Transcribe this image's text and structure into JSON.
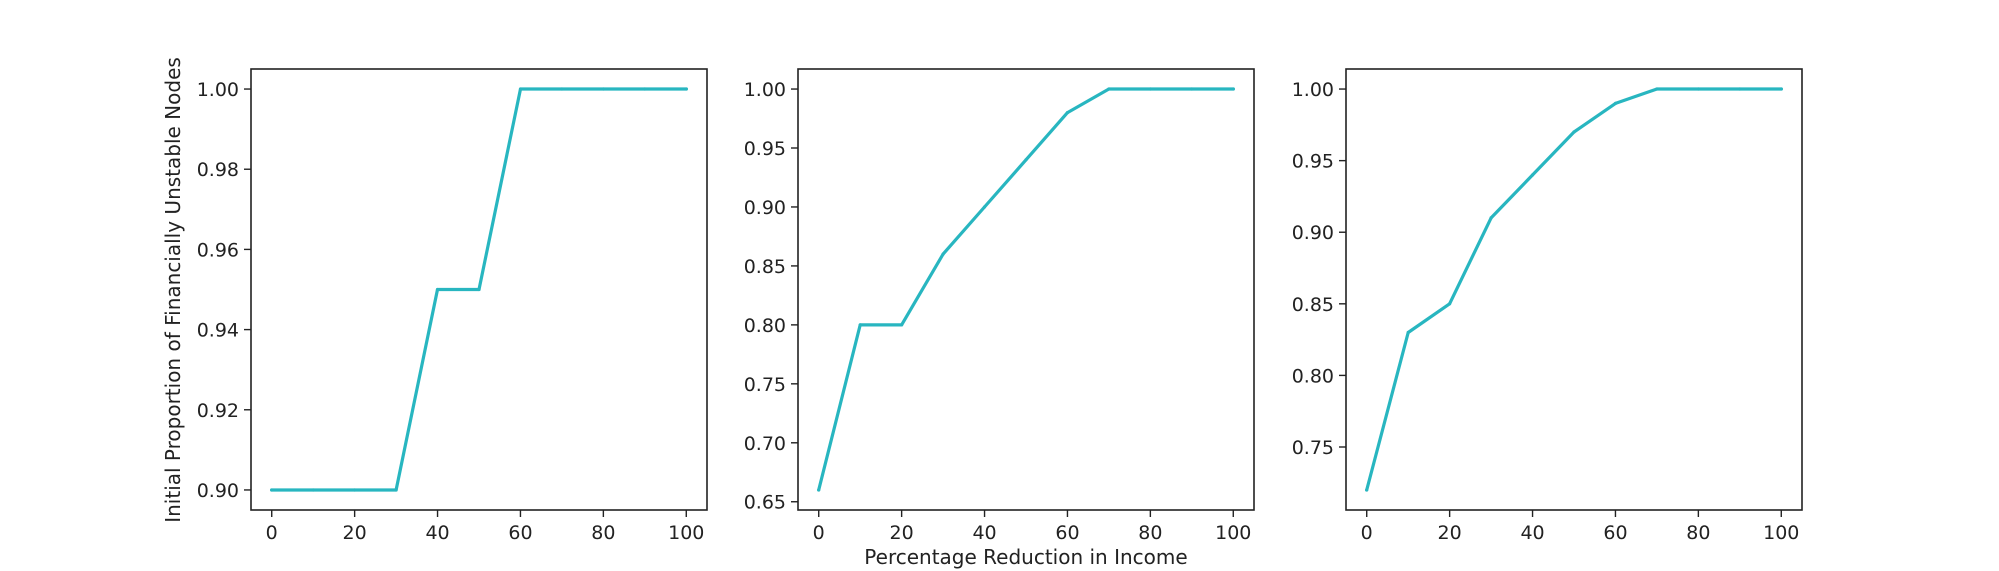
{
  "colors": {
    "series": "#28b6c0",
    "axis": "#222222",
    "background": "#ffffff"
  },
  "chart_data": [
    {
      "type": "line",
      "title": "",
      "xlabel": "",
      "ylabel": "Initial Proportion of Financially Unstable Nodes",
      "xlim": [
        -5,
        105
      ],
      "ylim": [
        0.895,
        1.005
      ],
      "xticks": [
        0,
        20,
        40,
        60,
        80,
        100
      ],
      "xtick_labels": [
        "0",
        "20",
        "40",
        "60",
        "80",
        "100"
      ],
      "yticks": [
        0.9,
        0.92,
        0.94,
        0.96,
        0.98,
        1.0
      ],
      "ytick_labels": [
        "0.90",
        "0.92",
        "0.94",
        "0.96",
        "0.98",
        "1.00"
      ],
      "grid": false,
      "series": [
        {
          "x": [
            0,
            10,
            20,
            30,
            40,
            50,
            60,
            70,
            80,
            90,
            100
          ],
          "y": [
            0.9,
            0.9,
            0.9,
            0.9,
            0.95,
            0.95,
            1.0,
            1.0,
            1.0,
            1.0,
            1.0
          ]
        }
      ]
    },
    {
      "type": "line",
      "title": "",
      "xlabel": "Percentage Reduction in Income",
      "ylabel": "",
      "xlim": [
        -5,
        105
      ],
      "ylim": [
        0.643,
        1.017
      ],
      "xticks": [
        0,
        20,
        40,
        60,
        80,
        100
      ],
      "xtick_labels": [
        "0",
        "20",
        "40",
        "60",
        "80",
        "100"
      ],
      "yticks": [
        0.65,
        0.7,
        0.75,
        0.8,
        0.85,
        0.9,
        0.95,
        1.0
      ],
      "ytick_labels": [
        "0.65",
        "0.70",
        "0.75",
        "0.80",
        "0.85",
        "0.90",
        "0.95",
        "1.00"
      ],
      "grid": false,
      "series": [
        {
          "x": [
            0,
            10,
            20,
            30,
            40,
            50,
            60,
            70,
            80,
            90,
            100
          ],
          "y": [
            0.66,
            0.8,
            0.8,
            0.86,
            0.9,
            0.94,
            0.98,
            1.0,
            1.0,
            1.0,
            1.0
          ]
        }
      ]
    },
    {
      "type": "line",
      "title": "",
      "xlabel": "",
      "ylabel": "",
      "xlim": [
        -5,
        105
      ],
      "ylim": [
        0.706,
        1.014
      ],
      "xticks": [
        0,
        20,
        40,
        60,
        80,
        100
      ],
      "xtick_labels": [
        "0",
        "20",
        "40",
        "60",
        "80",
        "100"
      ],
      "yticks": [
        0.75,
        0.8,
        0.85,
        0.9,
        0.95,
        1.0
      ],
      "ytick_labels": [
        "0.75",
        "0.80",
        "0.85",
        "0.90",
        "0.95",
        "1.00"
      ],
      "grid": false,
      "series": [
        {
          "x": [
            0,
            10,
            20,
            30,
            40,
            50,
            60,
            70,
            80,
            90,
            100
          ],
          "y": [
            0.72,
            0.83,
            0.85,
            0.91,
            0.94,
            0.97,
            0.99,
            1.0,
            1.0,
            1.0,
            1.0
          ]
        }
      ]
    }
  ]
}
